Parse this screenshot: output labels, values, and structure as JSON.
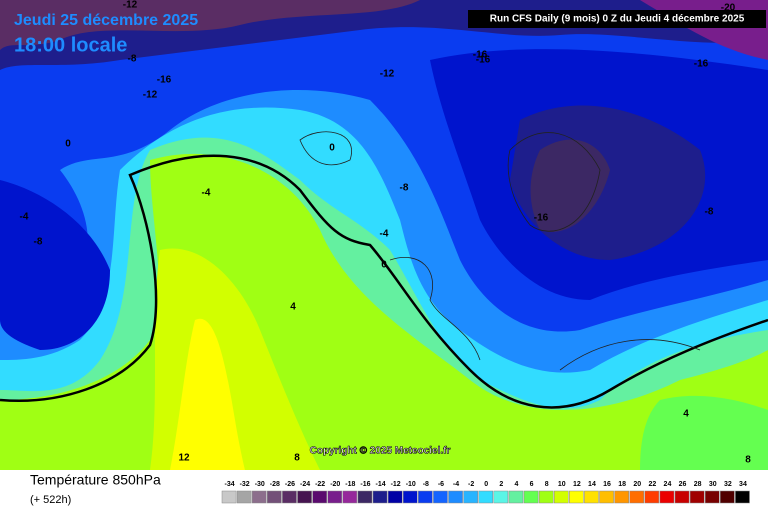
{
  "header": {
    "date": "Jeudi 25 décembre 2025",
    "time": "18:00 locale",
    "run": "Run CFS Daily (9 mois) 0 Z du Jeudi 4 décembre 2025"
  },
  "map": {
    "copyright": "Copyright © 2025 Meteociel.fr",
    "contour_labels": [
      "-12",
      "-8",
      "-16",
      "-12",
      "-12",
      "-16",
      "-16",
      "-16",
      "-20",
      "0",
      "0",
      "-4",
      "-4",
      "-8",
      "-8",
      "-4",
      "0",
      "-16",
      "-8",
      "4",
      "4",
      "12",
      "8",
      "8"
    ]
  },
  "legend": {
    "title": "Température 850hPa",
    "subtitle": "(+ 522h)",
    "steps": [
      {
        "label": -34,
        "color": "#c8c8c8"
      },
      {
        "label": -32,
        "color": "#a5a5a5"
      },
      {
        "label": -30,
        "color": "#8c6e8c"
      },
      {
        "label": -28,
        "color": "#735078"
      },
      {
        "label": -26,
        "color": "#5a2d64"
      },
      {
        "label": -24,
        "color": "#461450"
      },
      {
        "label": -22,
        "color": "#5a0a6e"
      },
      {
        "label": -20,
        "color": "#781e8c"
      },
      {
        "label": -18,
        "color": "#96289b"
      },
      {
        "label": -16,
        "color": "#3c2864"
      },
      {
        "label": -14,
        "color": "#1e1e8c"
      },
      {
        "label": -12,
        "color": "#0000a5"
      },
      {
        "label": -10,
        "color": "#0014cd"
      },
      {
        "label": -8,
        "color": "#0a3cf0"
      },
      {
        "label": -6,
        "color": "#1464ff"
      },
      {
        "label": -4,
        "color": "#1e8cff"
      },
      {
        "label": -2,
        "color": "#28b4ff"
      },
      {
        "label": 0,
        "color": "#32dcff"
      },
      {
        "label": 2,
        "color": "#5af5e6"
      },
      {
        "label": 4,
        "color": "#64f0a0"
      },
      {
        "label": 6,
        "color": "#64ff50"
      },
      {
        "label": 8,
        "color": "#a0ff14"
      },
      {
        "label": 10,
        "color": "#d2ff00"
      },
      {
        "label": 12,
        "color": "#ffff00"
      },
      {
        "label": 14,
        "color": "#ffe100"
      },
      {
        "label": 16,
        "color": "#ffbe00"
      },
      {
        "label": 18,
        "color": "#ff9600"
      },
      {
        "label": 20,
        "color": "#ff6e00"
      },
      {
        "label": 22,
        "color": "#ff3c00"
      },
      {
        "label": 24,
        "color": "#eb0000"
      },
      {
        "label": 26,
        "color": "#c80000"
      },
      {
        "label": 28,
        "color": "#a00000"
      },
      {
        "label": 30,
        "color": "#780000"
      },
      {
        "label": 32,
        "color": "#500000"
      },
      {
        "label": 34,
        "color": "#000000"
      }
    ]
  }
}
